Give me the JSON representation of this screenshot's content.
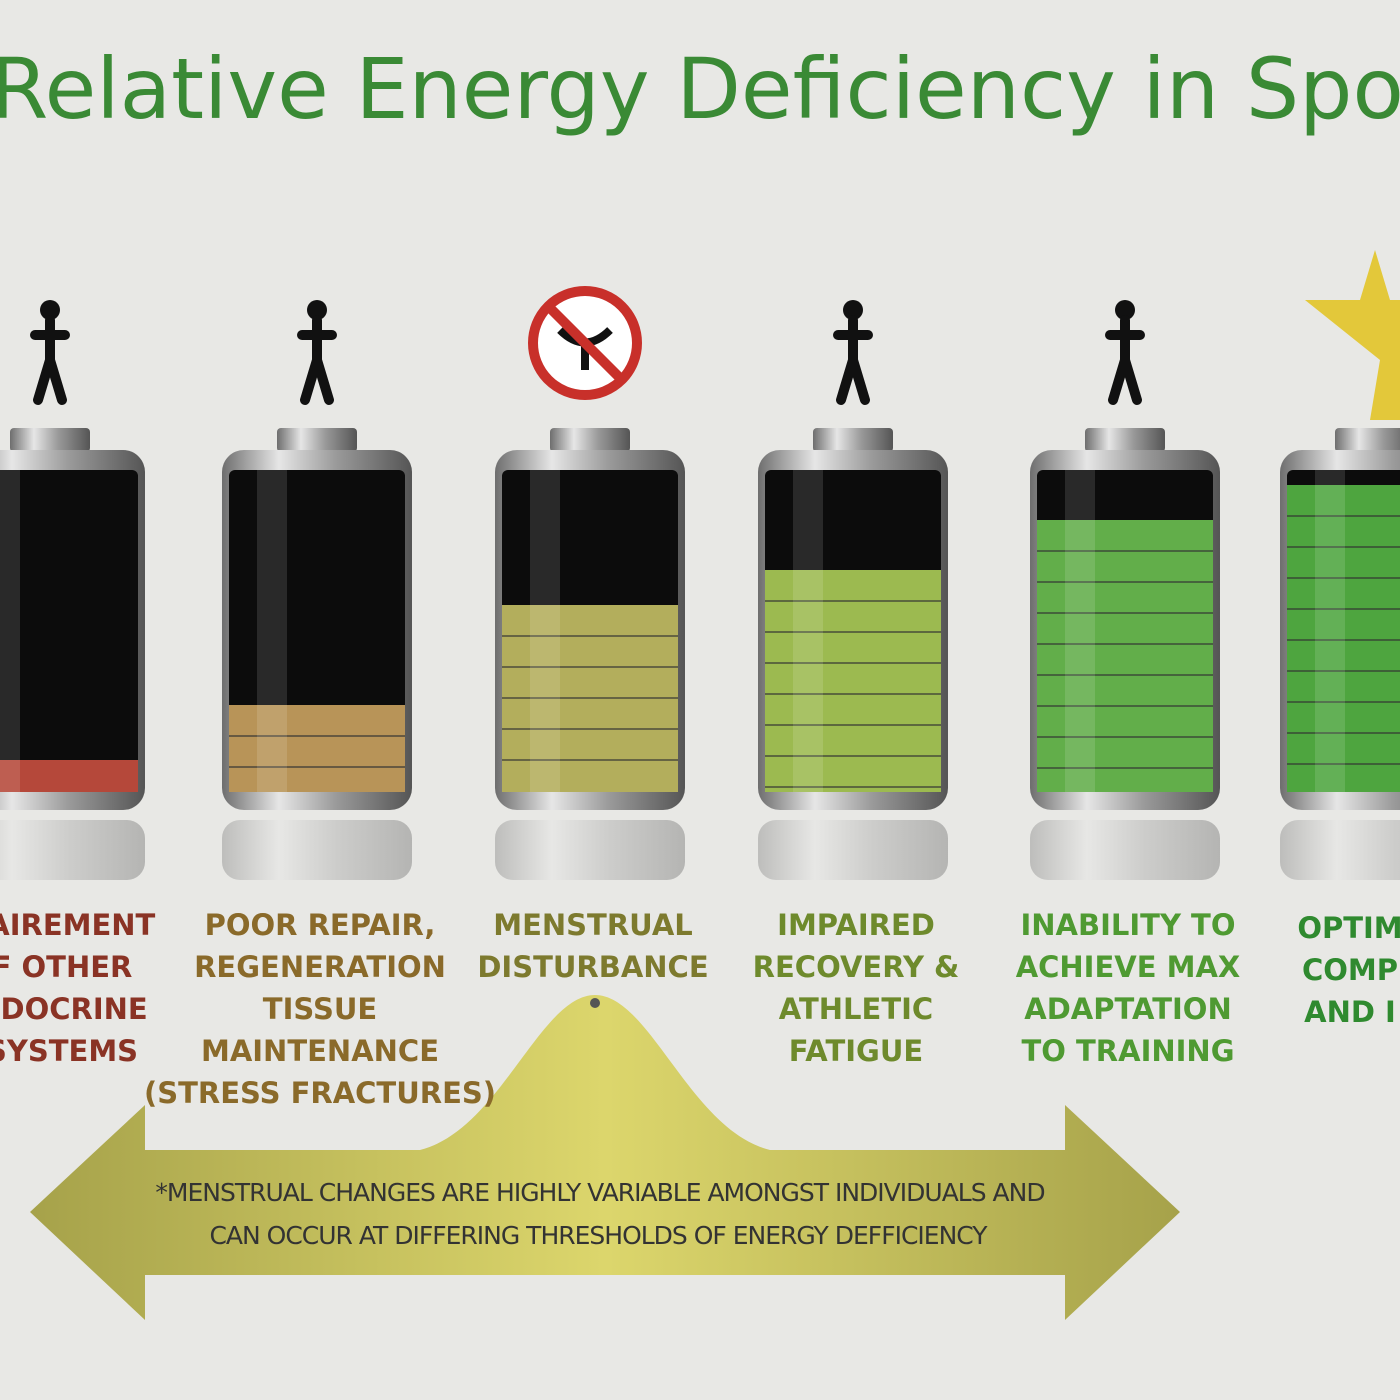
{
  "title": "Relative Energy Deficiency in Sport",
  "stages": [
    {
      "lines": [
        "PAIREMENT",
        "F OTHER",
        "NDOCRINE",
        "SYSTEMS"
      ]
    },
    {
      "lines": [
        "POOR REPAIR,",
        "REGENERATION",
        "TISSUE",
        "MAINTENANCE",
        "(STRESS FRACTURES)"
      ]
    },
    {
      "lines": [
        "MENSTRUAL",
        "DISTURBANCE"
      ]
    },
    {
      "lines": [
        "IMPAIRED",
        "RECOVERY &",
        "ATHLETIC",
        "FATIGUE"
      ]
    },
    {
      "lines": [
        "INABILITY TO",
        "ACHIEVE MAX",
        "ADAPTATION",
        "TO TRAINING"
      ]
    },
    {
      "lines": [
        "OPTIM",
        "COMP",
        "AND I"
      ]
    }
  ],
  "note": [
    "*MENSTRUAL CHANGES ARE HIGHLY VARIABLE AMONGST INDIVIDUALS AND",
    "CAN OCCUR AT DIFFERING THRESHOLDS OF ENERGY DEFFICIENCY"
  ]
}
